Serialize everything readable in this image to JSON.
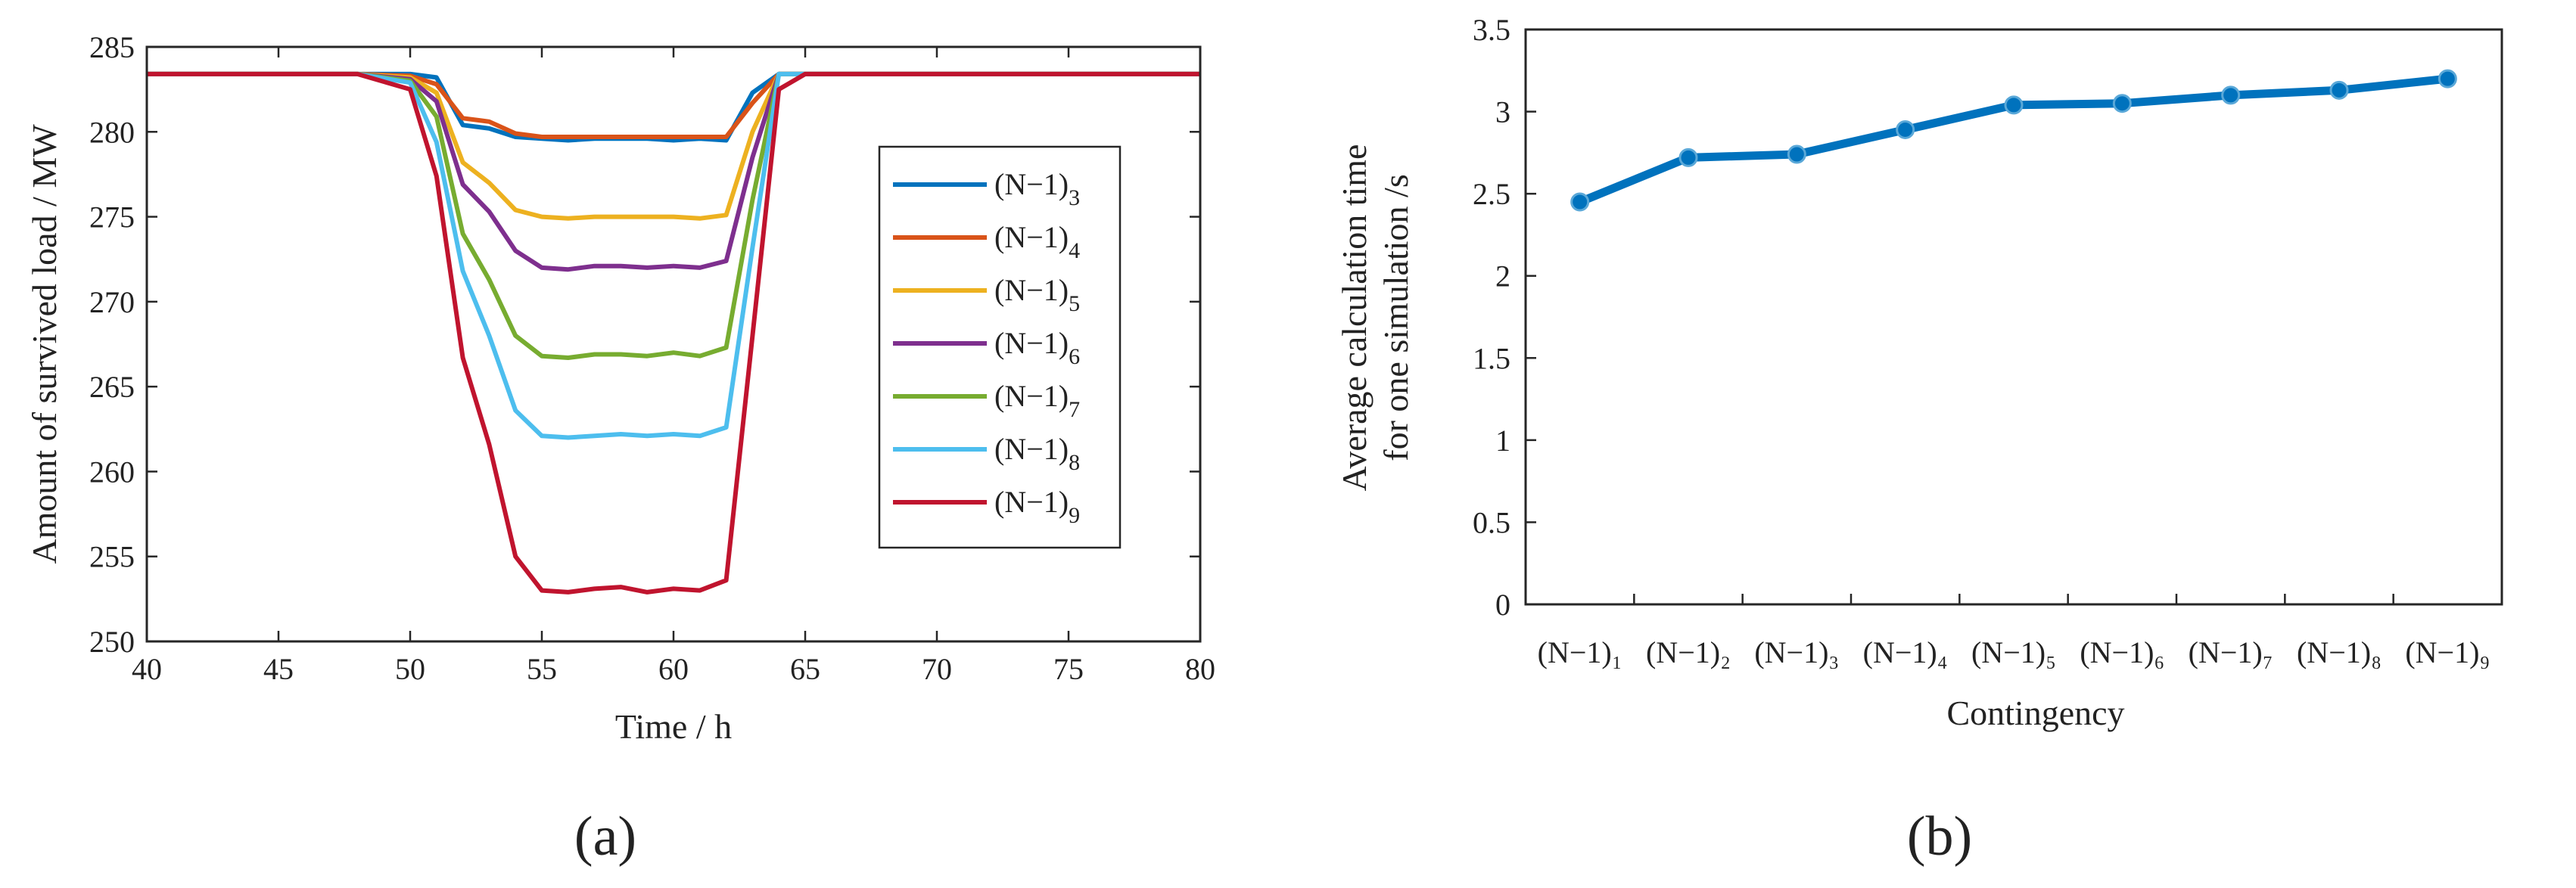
{
  "figure": {
    "panel_a_label": "(a)",
    "panel_b_label": "(b)"
  },
  "colors": {
    "axis": "#262626",
    "text": "#222222",
    "s3": "#0072BD",
    "s4": "#D95319",
    "s5": "#EDB120",
    "s6": "#7E2F8E",
    "s7": "#77AC30",
    "s8": "#4DBEEE",
    "s9": "#C0142E"
  },
  "chart_data": [
    {
      "type": "line",
      "title": "",
      "xlabel": "Time / h",
      "ylabel": "Amount of survived load / MW",
      "xlim": [
        40,
        80
      ],
      "ylim": [
        250,
        285
      ],
      "xticks": [
        40,
        45,
        50,
        55,
        60,
        65,
        70,
        75,
        80
      ],
      "yticks": [
        250,
        255,
        260,
        265,
        270,
        275,
        280,
        285
      ],
      "grid": false,
      "legend_position": "right-center",
      "x": [
        40,
        44,
        48,
        50,
        51,
        52,
        53,
        54,
        55,
        56,
        57,
        58,
        59,
        60,
        61,
        62,
        63,
        64,
        65,
        70,
        75,
        80
      ],
      "series": [
        {
          "name": "(N−1)",
          "subscript": "3",
          "color": "#0072BD",
          "values": [
            283.4,
            283.4,
            283.4,
            283.4,
            283.2,
            280.4,
            280.2,
            279.7,
            279.6,
            279.5,
            279.6,
            279.6,
            279.6,
            279.5,
            279.6,
            279.5,
            282.3,
            283.4,
            283.4,
            283.4,
            283.4,
            283.4
          ]
        },
        {
          "name": "(N−1)",
          "subscript": "4",
          "color": "#D95319",
          "values": [
            283.4,
            283.4,
            283.4,
            283.3,
            282.8,
            280.8,
            280.6,
            279.9,
            279.7,
            279.7,
            279.7,
            279.7,
            279.7,
            279.7,
            279.7,
            279.7,
            281.7,
            283.4,
            283.4,
            283.4,
            283.4,
            283.4
          ]
        },
        {
          "name": "(N−1)",
          "subscript": "5",
          "color": "#EDB120",
          "values": [
            283.4,
            283.4,
            283.4,
            283.2,
            282.3,
            278.2,
            277.0,
            275.4,
            275.0,
            274.9,
            275.0,
            275.0,
            275.0,
            275.0,
            274.9,
            275.1,
            280.0,
            283.4,
            283.4,
            283.4,
            283.4,
            283.4
          ]
        },
        {
          "name": "(N−1)",
          "subscript": "6",
          "color": "#7E2F8E",
          "values": [
            283.4,
            283.4,
            283.4,
            283.1,
            281.8,
            276.9,
            275.3,
            273.0,
            272.0,
            271.9,
            272.1,
            272.1,
            272.0,
            272.1,
            272.0,
            272.4,
            278.5,
            283.4,
            283.4,
            283.4,
            283.4,
            283.4
          ]
        },
        {
          "name": "(N−1)",
          "subscript": "7",
          "color": "#77AC30",
          "values": [
            283.4,
            283.4,
            283.4,
            283.0,
            280.9,
            274.0,
            271.3,
            268.0,
            266.8,
            266.7,
            266.9,
            266.9,
            266.8,
            267.0,
            266.8,
            267.3,
            276.0,
            283.4,
            283.4,
            283.4,
            283.4,
            283.4
          ]
        },
        {
          "name": "(N−1)",
          "subscript": "8",
          "color": "#4DBEEE",
          "values": [
            283.4,
            283.4,
            283.4,
            282.9,
            279.4,
            271.8,
            268.0,
            263.6,
            262.1,
            262.0,
            262.1,
            262.2,
            262.1,
            262.2,
            262.1,
            262.6,
            273.2,
            283.4,
            283.4,
            283.4,
            283.4,
            283.4
          ]
        },
        {
          "name": "(N−1)",
          "subscript": "9",
          "color": "#C0142E",
          "values": [
            283.4,
            283.4,
            283.4,
            282.5,
            277.4,
            266.7,
            261.6,
            255.0,
            253.0,
            252.9,
            253.1,
            253.2,
            252.9,
            253.1,
            253.0,
            253.6,
            268.0,
            282.5,
            283.4,
            283.4,
            283.4,
            283.4
          ]
        }
      ]
    },
    {
      "type": "line",
      "title": "",
      "xlabel": "Contingency",
      "ylabel_line1": "Average  calculation time",
      "ylabel_line2": "for one simulation /s",
      "ylim": [
        0,
        3.5
      ],
      "yticks": [
        0,
        0.5,
        1,
        1.5,
        2,
        2.5,
        3,
        3.5
      ],
      "ytick_labels": [
        "0",
        "0.5",
        "1",
        "1.5",
        "2",
        "2.5",
        "3",
        "3.5"
      ],
      "grid": false,
      "markers": true,
      "categories": [
        "(N−1)₁",
        "(N−1)₂",
        "(N−1)₃",
        "(N−1)₄",
        "(N−1)₅",
        "(N−1)₆",
        "(N−1)₇",
        "(N−1)₈",
        "(N−1)₉"
      ],
      "series": [
        {
          "name": "Average calculation time",
          "color": "#0072BD",
          "values": [
            2.45,
            2.72,
            2.74,
            2.89,
            3.04,
            3.05,
            3.1,
            3.13,
            3.2
          ]
        }
      ]
    }
  ]
}
